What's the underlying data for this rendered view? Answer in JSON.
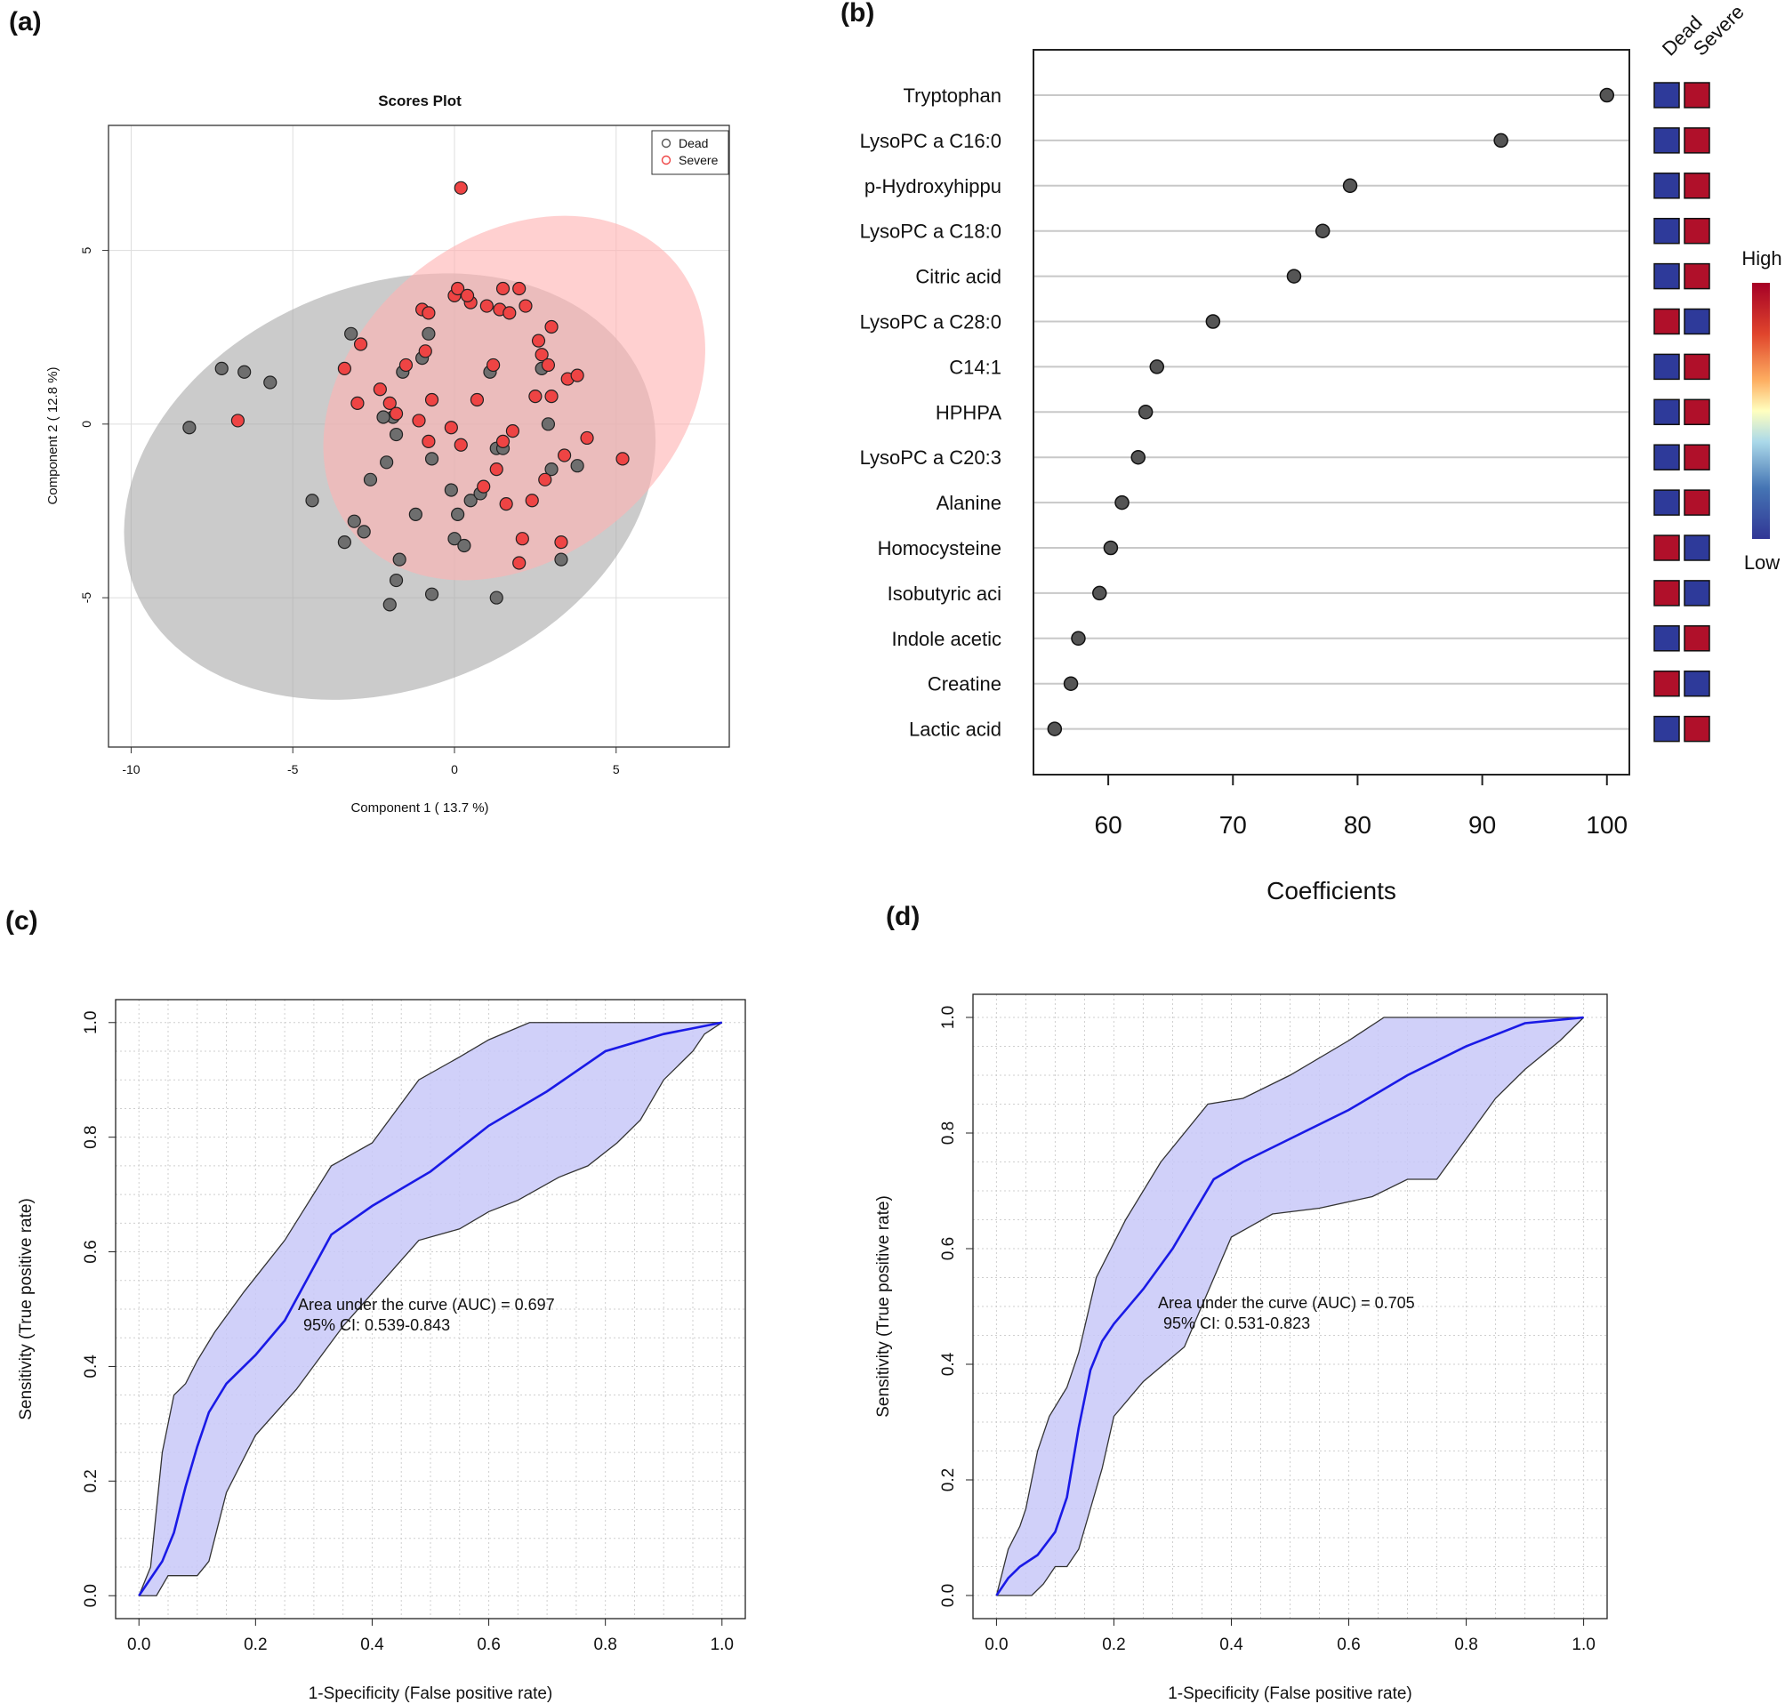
{
  "panel_labels": {
    "a": "(a)",
    "b": "(b)",
    "c": "(c)",
    "d": "(d)"
  },
  "colors": {
    "dead": "#555555",
    "severe": "#ee4444",
    "dead_ellipse": "#a8a8a8",
    "severe_ellipse": "#ffb3b3",
    "heat_high": "#b0102a",
    "heat_low": "#2e3a9a",
    "roc_line": "#1a1ae6",
    "roc_band": "#c8c8f8"
  },
  "chart_data": [
    {
      "id": "scores",
      "type": "scatter",
      "title": "Scores Plot",
      "xlabel": "Component 1 ( 13.7 %)",
      "ylabel": "Component 2 ( 12.8 %)",
      "xlim": [
        -10.7,
        8.5
      ],
      "ylim": [
        -9.3,
        8.6
      ],
      "xticks": [
        -10,
        -5,
        0,
        5
      ],
      "yticks": [
        -5,
        0,
        5
      ],
      "legend": {
        "position": "top-right",
        "entries": [
          "Dead",
          "Severe"
        ]
      },
      "ellipses": [
        {
          "series": "Dead",
          "cx": -2.0,
          "cy": -1.8,
          "rx": 8.5,
          "ry": 5.8,
          "angle": -22
        },
        {
          "series": "Severe",
          "cx": 1.85,
          "cy": 0.75,
          "rx": 6.5,
          "ry": 4.6,
          "angle": -40
        }
      ],
      "series": [
        {
          "name": "Dead",
          "x": [
            -8.2,
            -7.2,
            -6.5,
            -5.7,
            -4.4,
            -3.4,
            -3.1,
            -2.8,
            -2.6,
            -2.1,
            -2.0,
            -1.9,
            -1.8,
            -1.7,
            -1.6,
            -1.2,
            -1.0,
            -0.8,
            -0.7,
            -0.7,
            -0.1,
            0.0,
            0.1,
            0.3,
            0.5,
            0.8,
            1.1,
            1.3,
            1.3,
            1.5,
            2.7,
            2.9,
            3.0,
            3.3,
            3.8,
            -3.2,
            -2.2,
            -1.8
          ],
          "y": [
            -0.1,
            1.6,
            1.5,
            1.2,
            -2.2,
            -3.4,
            -2.8,
            -3.1,
            -1.6,
            -1.1,
            -5.2,
            0.2,
            -4.5,
            -3.9,
            1.5,
            -2.6,
            1.9,
            2.6,
            -4.9,
            -1.0,
            -1.9,
            -3.3,
            -2.6,
            -3.5,
            -2.2,
            -2.0,
            1.5,
            -5.0,
            -0.7,
            -0.7,
            1.6,
            0.0,
            -1.3,
            -3.9,
            -1.2,
            2.6,
            0.2,
            -0.3
          ]
        },
        {
          "name": "Severe",
          "x": [
            0.2,
            -6.7,
            -3.4,
            -3.0,
            -2.9,
            -2.3,
            -2.0,
            -1.8,
            -1.5,
            -1.1,
            -1.0,
            -0.9,
            -0.8,
            -0.7,
            -0.8,
            -0.1,
            0.0,
            0.1,
            0.2,
            0.5,
            0.7,
            0.9,
            1.0,
            1.2,
            1.3,
            1.4,
            1.5,
            1.6,
            1.7,
            1.8,
            2.0,
            2.0,
            2.1,
            2.2,
            2.4,
            2.5,
            2.6,
            2.7,
            2.8,
            2.9,
            3.0,
            3.0,
            3.3,
            3.4,
            3.5,
            3.8,
            4.1,
            5.2,
            0.4,
            1.5
          ],
          "y": [
            6.8,
            0.1,
            1.6,
            0.6,
            2.3,
            1.0,
            0.6,
            0.3,
            1.7,
            0.1,
            3.3,
            2.1,
            3.2,
            0.7,
            -0.5,
            -0.1,
            3.7,
            3.9,
            -0.6,
            3.5,
            0.7,
            -1.8,
            3.4,
            1.7,
            -1.3,
            3.3,
            3.9,
            -2.3,
            3.2,
            -0.2,
            -4.0,
            3.9,
            -3.3,
            3.4,
            -2.2,
            0.8,
            2.4,
            2.0,
            -1.6,
            1.7,
            0.8,
            2.8,
            -3.4,
            -0.9,
            1.3,
            1.4,
            -0.4,
            -1.0,
            3.7,
            -0.5
          ]
        }
      ]
    },
    {
      "id": "vip",
      "type": "scatter",
      "xlabel": "Coefficients",
      "xlim": [
        54,
        101.8
      ],
      "xticks": [
        60,
        70,
        80,
        90,
        100
      ],
      "heatmap_columns": [
        "Dead",
        "Severe"
      ],
      "colorbar": {
        "high_label": "High",
        "low_label": "Low"
      },
      "features": [
        "Tryptophan",
        "LysoPC a C16:0",
        "p-Hydroxyhippu",
        "LysoPC a C18:0",
        "Citric acid",
        "LysoPC a C28:0",
        "C14:1",
        "HPHPA",
        "LysoPC a C20:3",
        "Alanine",
        "Homocysteine",
        "Isobutyric aci",
        "Indole acetic",
        "Creatine",
        "Lactic acid"
      ],
      "values": [
        100.0,
        91.5,
        79.4,
        77.2,
        74.9,
        68.4,
        63.9,
        63.0,
        62.4,
        61.1,
        60.2,
        59.3,
        57.6,
        57.0,
        55.7
      ],
      "heat": [
        [
          "low",
          "high"
        ],
        [
          "low",
          "high"
        ],
        [
          "low",
          "high"
        ],
        [
          "low",
          "high"
        ],
        [
          "low",
          "high"
        ],
        [
          "high",
          "low"
        ],
        [
          "low",
          "high"
        ],
        [
          "low",
          "high"
        ],
        [
          "low",
          "high"
        ],
        [
          "low",
          "high"
        ],
        [
          "high",
          "low"
        ],
        [
          "high",
          "low"
        ],
        [
          "low",
          "high"
        ],
        [
          "high",
          "low"
        ],
        [
          "low",
          "high"
        ]
      ]
    },
    {
      "id": "roc_c",
      "type": "line",
      "xlabel": "1-Specificity (False positive rate)",
      "ylabel": "Sensitivity (True positive rate)",
      "xlim": [
        -0.04,
        1.04
      ],
      "ylim": [
        -0.04,
        1.04
      ],
      "xticks": [
        "0.0",
        "0.2",
        "0.4",
        "0.6",
        "0.8",
        "1.0"
      ],
      "yticks": [
        "0.0",
        "0.2",
        "0.4",
        "0.6",
        "0.8",
        "1.0"
      ],
      "annotation": [
        "Area under the curve (AUC) = 0.697",
        "95% CI: 0.539-0.843"
      ],
      "curve": {
        "x": [
          0,
          0.02,
          0.04,
          0.06,
          0.08,
          0.1,
          0.12,
          0.15,
          0.2,
          0.25,
          0.33,
          0.4,
          0.5,
          0.6,
          0.7,
          0.8,
          0.9,
          0.95,
          1.0
        ],
        "y": [
          0,
          0.03,
          0.06,
          0.11,
          0.19,
          0.26,
          0.32,
          0.37,
          0.42,
          0.48,
          0.63,
          0.68,
          0.74,
          0.82,
          0.88,
          0.95,
          0.98,
          0.99,
          1.0
        ]
      },
      "upper": {
        "x": [
          0,
          0.02,
          0.04,
          0.06,
          0.08,
          0.1,
          0.13,
          0.18,
          0.25,
          0.33,
          0.4,
          0.48,
          0.55,
          0.6,
          0.67,
          0.72,
          0.8,
          0.9,
          1.0
        ],
        "y": [
          0,
          0.05,
          0.25,
          0.35,
          0.37,
          0.41,
          0.46,
          0.53,
          0.62,
          0.75,
          0.79,
          0.9,
          0.94,
          0.97,
          1.0,
          1.0,
          1.0,
          1.0,
          1.0
        ]
      },
      "lower": {
        "x": [
          0,
          0.02,
          0.03,
          0.05,
          0.07,
          0.1,
          0.12,
          0.15,
          0.2,
          0.27,
          0.35,
          0.48,
          0.55,
          0.6,
          0.65,
          0.72,
          0.77,
          0.82,
          0.86,
          0.9,
          0.95,
          0.97,
          1.0
        ],
        "y": [
          0,
          0.0,
          0.0,
          0.035,
          0.035,
          0.035,
          0.06,
          0.18,
          0.28,
          0.36,
          0.47,
          0.62,
          0.64,
          0.67,
          0.69,
          0.73,
          0.75,
          0.79,
          0.83,
          0.9,
          0.95,
          0.98,
          1.0
        ]
      }
    },
    {
      "id": "roc_d",
      "type": "line",
      "xlabel": "1-Specificity (False positive rate)",
      "ylabel": "Sensitivity (True positive rate)",
      "xlim": [
        -0.04,
        1.04
      ],
      "ylim": [
        -0.04,
        1.04
      ],
      "xticks": [
        "0.0",
        "0.2",
        "0.4",
        "0.6",
        "0.8",
        "1.0"
      ],
      "yticks": [
        "0.0",
        "0.2",
        "0.4",
        "0.6",
        "0.8",
        "1.0"
      ],
      "annotation": [
        "Area under the curve (AUC) = 0.705",
        "95% CI: 0.531-0.823"
      ],
      "curve": {
        "x": [
          0,
          0.02,
          0.04,
          0.07,
          0.1,
          0.12,
          0.14,
          0.16,
          0.18,
          0.2,
          0.25,
          0.3,
          0.37,
          0.42,
          0.5,
          0.6,
          0.7,
          0.8,
          0.9,
          1.0
        ],
        "y": [
          0,
          0.03,
          0.05,
          0.07,
          0.11,
          0.17,
          0.29,
          0.39,
          0.44,
          0.47,
          0.53,
          0.6,
          0.72,
          0.75,
          0.79,
          0.84,
          0.9,
          0.95,
          0.99,
          1.0
        ]
      },
      "upper": {
        "x": [
          0,
          0.02,
          0.04,
          0.05,
          0.07,
          0.09,
          0.12,
          0.14,
          0.17,
          0.22,
          0.28,
          0.36,
          0.42,
          0.5,
          0.6,
          0.66,
          0.8,
          1.0
        ],
        "y": [
          0,
          0.08,
          0.12,
          0.15,
          0.25,
          0.31,
          0.36,
          0.42,
          0.55,
          0.65,
          0.75,
          0.85,
          0.86,
          0.9,
          0.96,
          1.0,
          1.0,
          1.0
        ]
      },
      "lower": {
        "x": [
          0,
          0.03,
          0.06,
          0.08,
          0.1,
          0.12,
          0.14,
          0.16,
          0.18,
          0.2,
          0.25,
          0.32,
          0.4,
          0.47,
          0.55,
          0.64,
          0.7,
          0.75,
          0.8,
          0.85,
          0.9,
          0.96,
          1.0
        ],
        "y": [
          0,
          0.0,
          0.0,
          0.02,
          0.05,
          0.05,
          0.08,
          0.15,
          0.22,
          0.31,
          0.37,
          0.43,
          0.62,
          0.66,
          0.67,
          0.69,
          0.72,
          0.72,
          0.79,
          0.86,
          0.91,
          0.96,
          1.0
        ]
      }
    }
  ]
}
